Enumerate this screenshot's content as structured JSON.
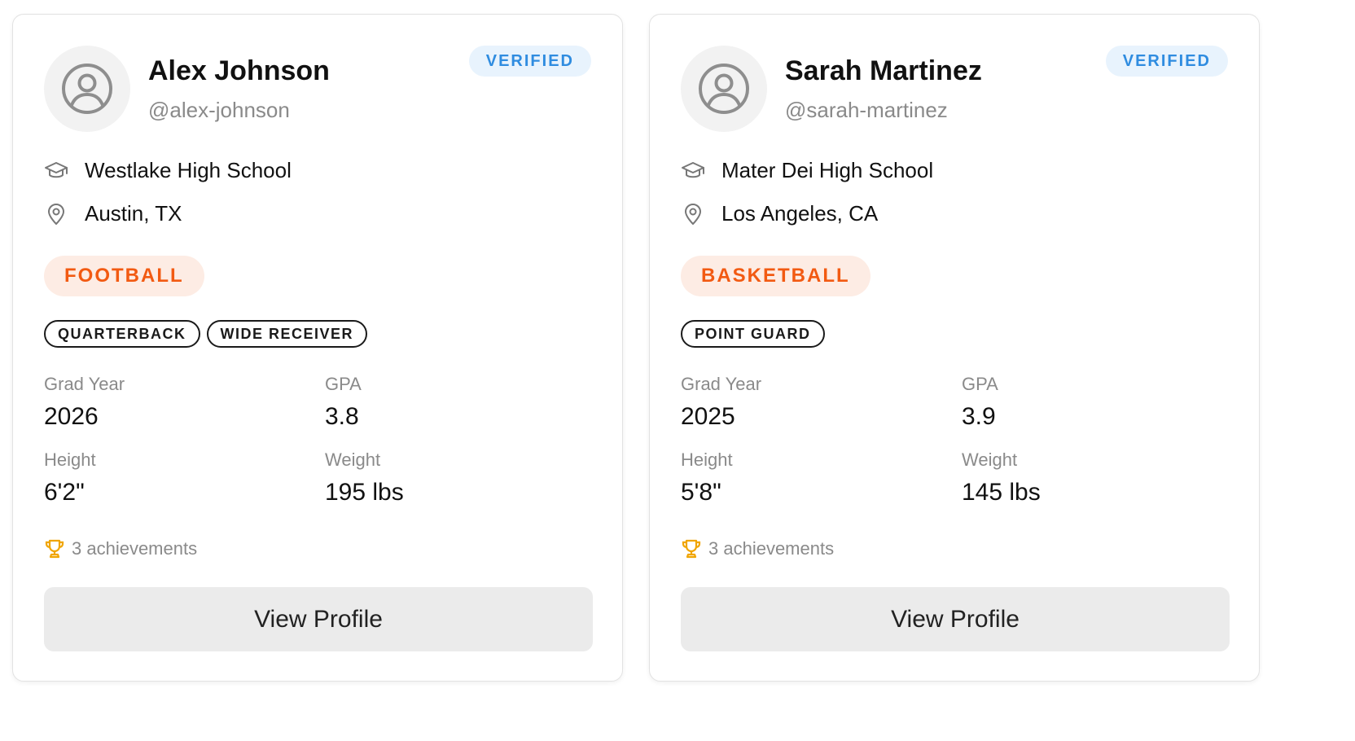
{
  "colors": {
    "verified_text": "#2f8ce0",
    "verified_bg": "#e8f3fd",
    "sport_text": "#f25a12",
    "sport_bg": "#fdece4",
    "trophy": "#f0a500",
    "button_bg": "#ebebeb"
  },
  "icons": {
    "avatar": "user-circle-icon",
    "school": "graduation-cap-icon",
    "location": "map-pin-icon",
    "achievements": "trophy-icon"
  },
  "cards": [
    {
      "name": "Alex Johnson",
      "handle": "@alex-johnson",
      "badge": "VERIFIED",
      "school": "Westlake High School",
      "location": "Austin, TX",
      "sport": "FOOTBALL",
      "positions": [
        "QUARTERBACK",
        "WIDE RECEIVER"
      ],
      "stats": {
        "grad_year_label": "Grad Year",
        "grad_year": "2026",
        "gpa_label": "GPA",
        "gpa": "3.8",
        "height_label": "Height",
        "height": "6'2\"",
        "weight_label": "Weight",
        "weight": "195 lbs"
      },
      "achievements": "3 achievements",
      "button": "View Profile"
    },
    {
      "name": "Sarah Martinez",
      "handle": "@sarah-martinez",
      "badge": "VERIFIED",
      "school": "Mater Dei High School",
      "location": "Los Angeles, CA",
      "sport": "BASKETBALL",
      "positions": [
        "POINT GUARD"
      ],
      "stats": {
        "grad_year_label": "Grad Year",
        "grad_year": "2025",
        "gpa_label": "GPA",
        "gpa": "3.9",
        "height_label": "Height",
        "height": "5'8\"",
        "weight_label": "Weight",
        "weight": "145 lbs"
      },
      "achievements": "3 achievements",
      "button": "View Profile"
    }
  ]
}
